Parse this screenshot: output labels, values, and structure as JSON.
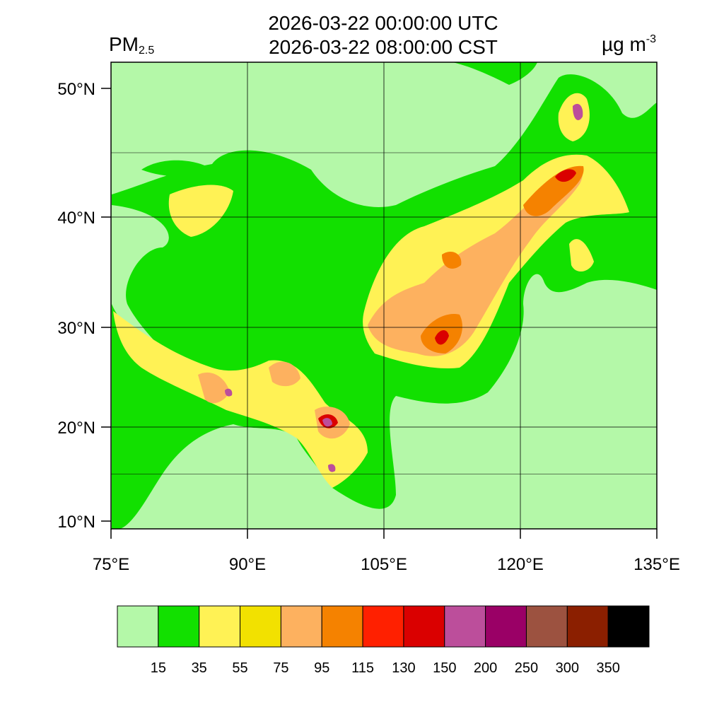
{
  "title": {
    "line1": "2026-03-22 00:00:00 UTC",
    "line2": "2026-03-22 08:00:00 CST"
  },
  "variable": {
    "name": "PM",
    "subscript": "2.5"
  },
  "units": {
    "base": "µg m",
    "exponent": "-3"
  },
  "map": {
    "lon_range": [
      75,
      135
    ],
    "lat_range": [
      9,
      52
    ],
    "lat_ticks": [
      {
        "value": 10,
        "label": "10°N"
      },
      {
        "value": 20,
        "label": "20°N"
      },
      {
        "value": 30,
        "label": "30°N"
      },
      {
        "value": 40,
        "label": "40°N"
      },
      {
        "value": 50,
        "label": "50°N"
      }
    ],
    "lon_ticks": [
      {
        "value": 75,
        "label": "75°E"
      },
      {
        "value": 90,
        "label": "90°E"
      },
      {
        "value": 105,
        "label": "105°E"
      },
      {
        "value": 120,
        "label": "120°E"
      },
      {
        "value": 135,
        "label": "135°E"
      }
    ],
    "background_color": "#b4f8a8"
  },
  "colorbar": {
    "colors": [
      "#b4f8a8",
      "#12e000",
      "#fff255",
      "#f2e100",
      "#fdb15f",
      "#f58200",
      "#ff2000",
      "#da0000",
      "#bc4e9b",
      "#9a0066",
      "#9c5240",
      "#8b1f00",
      "#000000"
    ],
    "levels": [
      "15",
      "35",
      "55",
      "75",
      "95",
      "115",
      "130",
      "150",
      "200",
      "250",
      "300",
      "350"
    ]
  }
}
